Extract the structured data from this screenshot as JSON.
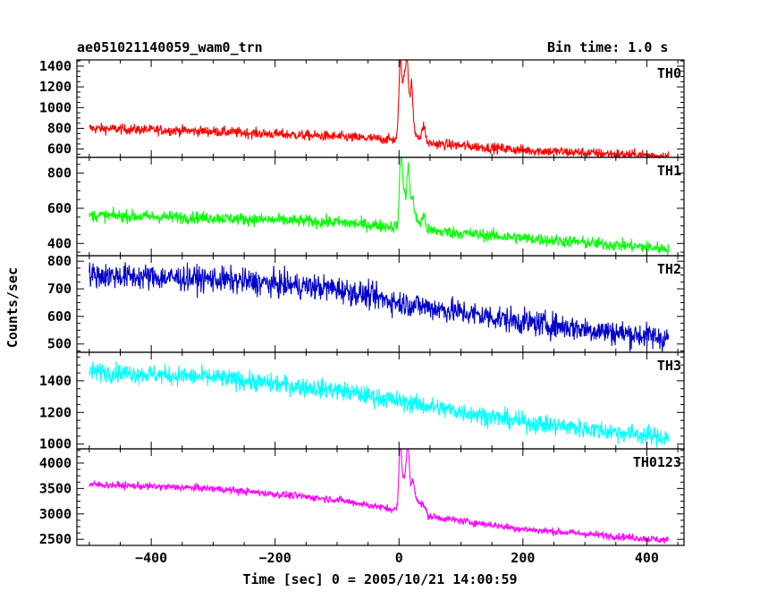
{
  "chart_data": {
    "type": "line",
    "title": "ae051021140059_wam0_trn",
    "bin_time": "Bin time: 1.0 s",
    "xlabel": "Time [sec] 0 = 2005/10/21 14:00:59",
    "ylabel": "Counts/sec",
    "xlim": [
      -520,
      460
    ],
    "xticks": [
      -400,
      -200,
      0,
      200,
      400
    ],
    "x_start": -500,
    "x_end": 435,
    "panels": [
      {
        "name": "TH0",
        "color": "#ff0000",
        "ylim": [
          520,
          1460
        ],
        "yticks": [
          600,
          800,
          1000,
          1200,
          1400
        ],
        "baseline": [
          [
            -500,
            800
          ],
          [
            -300,
            770
          ],
          [
            -100,
            720
          ],
          [
            -5,
            690
          ],
          [
            60,
            650
          ],
          [
            200,
            590
          ],
          [
            435,
            530
          ]
        ],
        "noise": 45,
        "peaks": [
          [
            2,
            1450
          ],
          [
            8,
            1200
          ],
          [
            13,
            1400
          ],
          [
            20,
            1150
          ],
          [
            40,
            800
          ]
        ]
      },
      {
        "name": "TH1",
        "color": "#00ff00",
        "ylim": [
          330,
          890
        ],
        "yticks": [
          400,
          600,
          800
        ],
        "baseline": [
          [
            -500,
            560
          ],
          [
            -300,
            545
          ],
          [
            -100,
            520
          ],
          [
            -5,
            495
          ],
          [
            60,
            470
          ],
          [
            200,
            430
          ],
          [
            435,
            370
          ]
        ],
        "noise": 32,
        "peaks": [
          [
            3,
            880
          ],
          [
            8,
            650
          ],
          [
            15,
            800
          ],
          [
            22,
            600
          ],
          [
            40,
            540
          ]
        ]
      },
      {
        "name": "TH2",
        "color": "#0000cc",
        "ylim": [
          470,
          820
        ],
        "yticks": [
          500,
          600,
          700,
          800
        ],
        "baseline": [
          [
            -500,
            750
          ],
          [
            -300,
            735
          ],
          [
            -100,
            700
          ],
          [
            0,
            650
          ],
          [
            200,
            580
          ],
          [
            435,
            520
          ]
        ],
        "noise": 42,
        "peaks": []
      },
      {
        "name": "TH3",
        "color": "#00ffff",
        "ylim": [
          970,
          1580
        ],
        "yticks": [
          1000,
          1200,
          1400
        ],
        "baseline": [
          [
            -500,
            1460
          ],
          [
            -300,
            1420
          ],
          [
            -100,
            1340
          ],
          [
            0,
            1270
          ],
          [
            200,
            1140
          ],
          [
            435,
            1040
          ]
        ],
        "noise": 55,
        "peaks": []
      },
      {
        "name": "TH0123",
        "color": "#ff00ff",
        "ylim": [
          2380,
          4280
        ],
        "yticks": [
          2500,
          3000,
          3500,
          4000
        ],
        "baseline": [
          [
            -500,
            3580
          ],
          [
            -300,
            3500
          ],
          [
            -100,
            3280
          ],
          [
            -5,
            3080
          ],
          [
            60,
            2930
          ],
          [
            200,
            2700
          ],
          [
            435,
            2480
          ]
        ],
        "noise": 65,
        "peaks": [
          [
            2,
            4250
          ],
          [
            8,
            3500
          ],
          [
            14,
            4150
          ],
          [
            22,
            3300
          ],
          [
            40,
            3050
          ]
        ]
      }
    ]
  }
}
